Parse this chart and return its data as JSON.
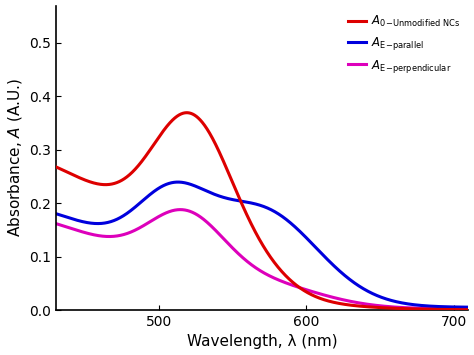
{
  "xlabel": "Wavelength, λ (nm)",
  "ylabel": "Absorbance,  A (A.U.)",
  "xlim": [
    430,
    710
  ],
  "ylim": [
    0.0,
    0.57
  ],
  "xticks": [
    500,
    600,
    700
  ],
  "yticks": [
    0.0,
    0.1,
    0.2,
    0.3,
    0.4,
    0.5
  ],
  "colors": {
    "red": "#dd0000",
    "blue": "#0000dd",
    "magenta": "#dd00bb"
  },
  "line_width": 2.2,
  "background_color": "#ffffff",
  "figsize": [
    4.74,
    3.55
  ],
  "dpi": 100
}
